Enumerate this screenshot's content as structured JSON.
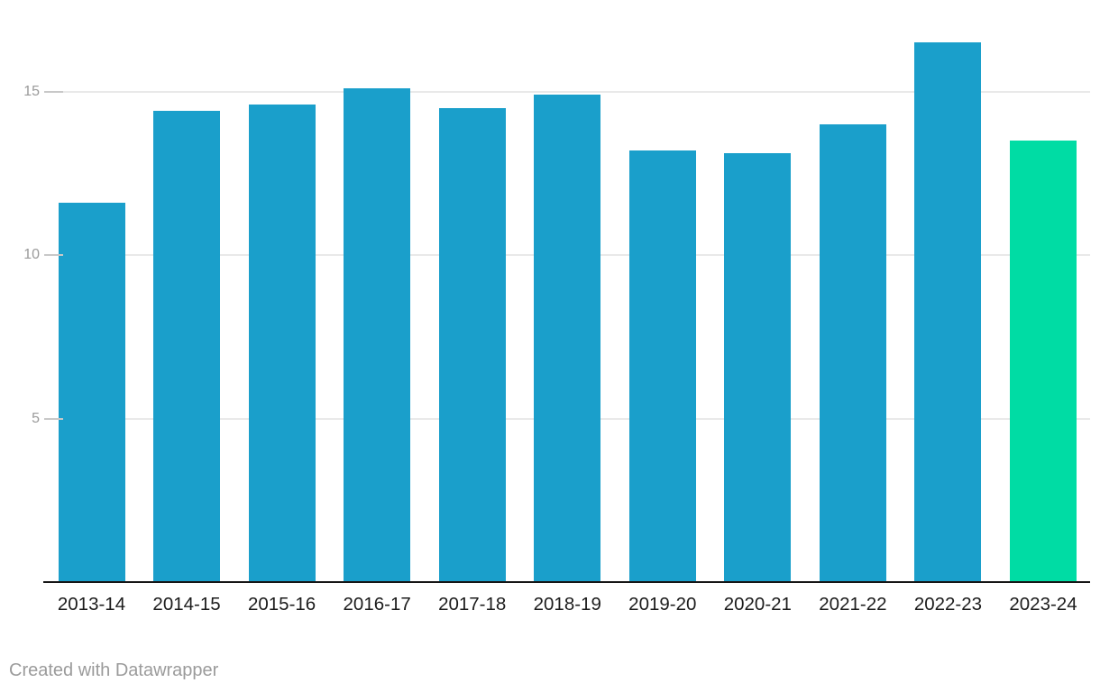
{
  "chart_data": {
    "type": "bar",
    "categories": [
      "2013-14",
      "2014-15",
      "2015-16",
      "2016-17",
      "2017-18",
      "2018-19",
      "2019-20",
      "2020-21",
      "2021-22",
      "2022-23",
      "2023-24"
    ],
    "values": [
      11.6,
      14.4,
      14.6,
      15.1,
      14.5,
      14.9,
      13.2,
      13.1,
      14.0,
      16.5,
      13.5
    ],
    "title": "",
    "xlabel": "",
    "ylabel": "",
    "ylim": [
      0,
      17.8
    ],
    "yticks": [
      5,
      10,
      15
    ],
    "grid": true,
    "legend": false,
    "bar_color_default": "#1A9FCB",
    "bar_color_highlight": "#00DCA4",
    "highlight_category": "2023-24",
    "axis_line_color": "#151515",
    "gridline_color": "#e9e9e9",
    "tick_label_color": "#9a9a9a",
    "category_label_color": "#1c1c1c"
  },
  "footer": {
    "attribution": "Created with Datawrapper"
  }
}
